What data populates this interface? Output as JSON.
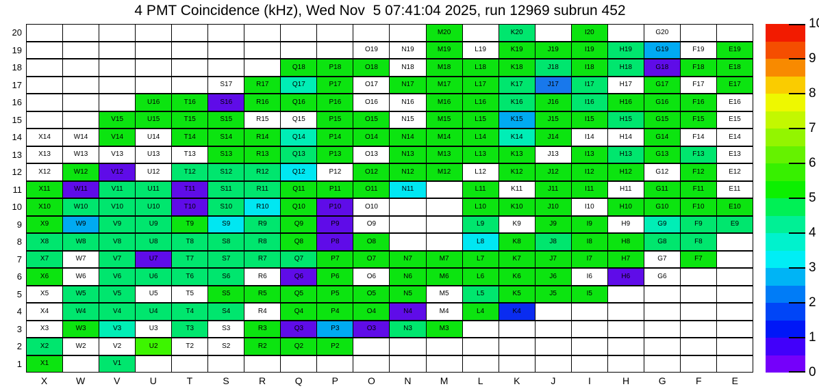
{
  "title": "4 PMT Coincidence (kHz), Wed Nov  5 07:41:04 2025, run 12969 subrun 452",
  "chart_data": {
    "type": "heatmap",
    "title": "4 PMT Coincidence (kHz), Wed Nov  5 07:41:04 2025, run 12969 subrun 452",
    "run": "12969",
    "subrun": "452",
    "timestamp": "Wed Nov  5 07:41:04 2025",
    "columns": [
      "X",
      "W",
      "V",
      "U",
      "T",
      "S",
      "R",
      "Q",
      "P",
      "O",
      "N",
      "M",
      "L",
      "K",
      "J",
      "I",
      "H",
      "G",
      "F",
      "E"
    ],
    "rows": [
      20,
      19,
      18,
      17,
      16,
      15,
      14,
      13,
      12,
      11,
      10,
      9,
      8,
      7,
      6,
      5,
      4,
      3,
      2,
      1
    ],
    "cell_format": "LABEL|COLORCODE, empty string = unpopulated cell, W = labeled cell with no fill",
    "cells": [
      [
        "",
        "",
        "",
        "",
        "",
        "",
        "",
        "",
        "",
        "",
        "",
        "M20|G",
        "",
        "K20|SG",
        "",
        "I20|G",
        "",
        "G20|W",
        "",
        ""
      ],
      [
        "",
        "",
        "",
        "",
        "",
        "",
        "",
        "",
        "",
        "O19|W",
        "N19|W",
        "M19|G",
        "L19|W",
        "K19|G",
        "J19|G",
        "I19|G",
        "H19|SG",
        "G19|SB",
        "F19|W",
        "E19|G"
      ],
      [
        "",
        "",
        "",
        "",
        "",
        "",
        "",
        "Q18|G",
        "P18|G",
        "O18|G",
        "N18|W",
        "M18|G",
        "L18|G",
        "K18|G",
        "J18|SG",
        "I18|G",
        "H18|SG",
        "G18|VI",
        "F18|G",
        "E18|G"
      ],
      [
        "",
        "",
        "",
        "",
        "",
        "S17|W",
        "R17|G",
        "Q17|TQ",
        "P17|G",
        "O17|W",
        "N17|G",
        "M17|G",
        "L17|G",
        "K17|SG",
        "J17|DB",
        "I17|SG",
        "H17|W",
        "G17|G",
        "F17|W",
        "E17|G"
      ],
      [
        "",
        "",
        "",
        "U16|G",
        "T16|G",
        "S16|VI",
        "R16|G",
        "Q16|G",
        "P16|G",
        "O16|W",
        "N16|W",
        "M16|G",
        "L16|G",
        "K16|SG",
        "J16|G",
        "I16|SG",
        "H16|G",
        "G16|G",
        "F16|G",
        "E16|W"
      ],
      [
        "",
        "",
        "V15|G",
        "U15|G",
        "T15|G",
        "S15|G",
        "R15|W",
        "Q15|W",
        "P15|G",
        "O15|G",
        "N15|W",
        "M15|G",
        "L15|G",
        "K15|SB",
        "J15|G",
        "I15|G",
        "H15|SG",
        "G15|G",
        "F15|G",
        "E15|W"
      ],
      [
        "X14|W",
        "W14|W",
        "V14|G",
        "U14|W",
        "T14|G",
        "S14|G",
        "R14|G",
        "Q14|TQ",
        "P14|G",
        "O14|G",
        "N14|G",
        "M14|G",
        "L14|G",
        "K14|TQ",
        "J14|G",
        "I14|W",
        "H14|W",
        "G14|G",
        "F14|W",
        "E14|W"
      ],
      [
        "X13|W",
        "W13|W",
        "V13|W",
        "U13|W",
        "T13|W",
        "S13|G",
        "R13|G",
        "Q13|SG",
        "P13|G",
        "O13|W",
        "N13|G",
        "M13|G",
        "L13|G",
        "K13|G",
        "J13|W",
        "I13|G",
        "H13|SG",
        "G13|G",
        "F13|SG",
        "E13|W"
      ],
      [
        "X12|W",
        "W12|G",
        "V12|VI",
        "U12|W",
        "T12|SG",
        "S12|SG",
        "R12|SG",
        "Q12|CY",
        "P12|W",
        "O12|G",
        "N12|G",
        "M12|G",
        "L12|W",
        "K12|G",
        "J12|G",
        "I12|G",
        "H12|G",
        "G12|W",
        "F12|G",
        "E12|W"
      ],
      [
        "X11|G",
        "W11|VI",
        "V11|SG",
        "U11|SG",
        "T11|VI",
        "S11|SG",
        "R11|SG",
        "Q11|G",
        "P11|G",
        "O11|G",
        "N11|CY",
        "",
        "L11|G",
        "K11|W",
        "J11|G",
        "I11|G",
        "H11|W",
        "G11|G",
        "F11|G",
        "E11|W"
      ],
      [
        "X10|G",
        "W10|SG",
        "V10|SG",
        "U10|SG",
        "T10|VI",
        "S10|SG",
        "R10|CY",
        "Q10|G",
        "P10|VI",
        "O10|W",
        "",
        "",
        "L10|G",
        "K10|G",
        "J10|G",
        "I10|W",
        "H10|G",
        "G10|G",
        "F10|G",
        "E10|G"
      ],
      [
        "X9|G",
        "W9|SB",
        "V9|SG",
        "U9|SG",
        "T9|G",
        "S9|CY",
        "R9|SG",
        "Q9|G",
        "P9|VI",
        "O9|W",
        "",
        "",
        "L9|SG",
        "K9|W",
        "J9|G",
        "I9|G",
        "H9|W",
        "G9|TQ",
        "F9|SG",
        "E9|SG"
      ],
      [
        "X8|SG",
        "W8|SG",
        "V8|SG",
        "U8|SG",
        "T8|SG",
        "S8|SG",
        "R8|SG",
        "Q8|G",
        "P8|VI",
        "O8|G",
        "",
        "",
        "L8|CY",
        "K8|G",
        "J8|SG",
        "I8|G",
        "H8|G",
        "G8|SG",
        "F8|SG",
        ""
      ],
      [
        "X7|SG",
        "W7|W",
        "V7|SG",
        "U7|VI",
        "T7|SG",
        "S7|SG",
        "R7|SG",
        "Q7|SG",
        "P7|G",
        "O7|G",
        "N7|G",
        "M7|G",
        "L7|G",
        "K7|G",
        "J7|G",
        "I7|G",
        "H7|G",
        "G7|W",
        "F7|G",
        ""
      ],
      [
        "X6|G",
        "W6|W",
        "V6|SG",
        "U6|SG",
        "T6|SG",
        "S6|SG",
        "R6|W",
        "Q6|VI",
        "P6|G",
        "O6|W",
        "N6|G",
        "M6|G",
        "L6|G",
        "K6|G",
        "J6|G",
        "I6|W",
        "H6|VI",
        "G6|W",
        "",
        ""
      ],
      [
        "X5|W",
        "W5|SG",
        "V5|SG",
        "U5|W",
        "T5|W",
        "S5|G",
        "R5|G",
        "Q5|G",
        "P5|G",
        "O5|G",
        "N5|G",
        "M5|W",
        "L5|SG",
        "K5|G",
        "J5|G",
        "I5|G",
        "",
        "",
        "",
        ""
      ],
      [
        "X4|W",
        "W4|SG",
        "V4|SG",
        "U4|SG",
        "T4|SG",
        "S4|SG",
        "R4|W",
        "Q4|G",
        "P4|G",
        "O4|G",
        "N4|VI",
        "M4|W",
        "L4|G",
        "K4|BL",
        "",
        "",
        "",
        "",
        "",
        ""
      ],
      [
        "X3|W",
        "W3|G",
        "V3|TQ",
        "U3|W",
        "T3|SG",
        "S3|W",
        "R3|G",
        "Q3|VI",
        "P3|SB",
        "O3|VI",
        "N3|SG",
        "M3|G",
        "",
        "",
        "",
        "",
        "",
        "",
        "",
        ""
      ],
      [
        "X2|SG",
        "W2|W",
        "V2|W",
        "U2|CH",
        "T2|W",
        "S2|W",
        "R2|G",
        "Q2|G",
        "P2|G",
        "",
        "",
        "",
        "",
        "",
        "",
        "",
        "",
        "",
        "",
        ""
      ],
      [
        "X1|G",
        "",
        "V1|SG",
        "",
        "",
        "",
        "",
        "",
        "",
        "",
        "",
        "",
        "",
        "",
        "",
        "",
        "",
        "",
        "",
        ""
      ]
    ],
    "color_legend": {
      "G": "#0ce410",
      "CH": "#3df500",
      "SG": "#00e66e",
      "TQ": "#00eeb6",
      "CY": "#00e7f2",
      "SB": "#00aaf2",
      "DB": "#1878ec",
      "BL": "#0a2cf0",
      "VI": "#5f0ce8",
      "W": "#ffffff"
    },
    "color_approx_value": {
      "G": 5.25,
      "CH": 5.9,
      "SG": 4.6,
      "TQ": 3.9,
      "CY": 3.25,
      "SB": 2.75,
      "DB": 2.25,
      "BL": 1.4,
      "VI": 0.4,
      "W": null
    },
    "colorbar": {
      "min": 0,
      "max": 10,
      "ticks": [
        10,
        9,
        8,
        7,
        6,
        5,
        4,
        3,
        2,
        1,
        0
      ],
      "band_colors_top_to_bottom": [
        "#f21b00",
        "#f54e00",
        "#f88a00",
        "#facc00",
        "#eef800",
        "#c3f800",
        "#93f500",
        "#65f200",
        "#37f000",
        "#0cf000",
        "#00f055",
        "#00f095",
        "#00f2cd",
        "#00eef5",
        "#00b4f5",
        "#007cf7",
        "#0045f7",
        "#0017f7",
        "#4100fa",
        "#7500fa"
      ],
      "position": "right"
    },
    "grid": true,
    "legend_position": "right"
  }
}
